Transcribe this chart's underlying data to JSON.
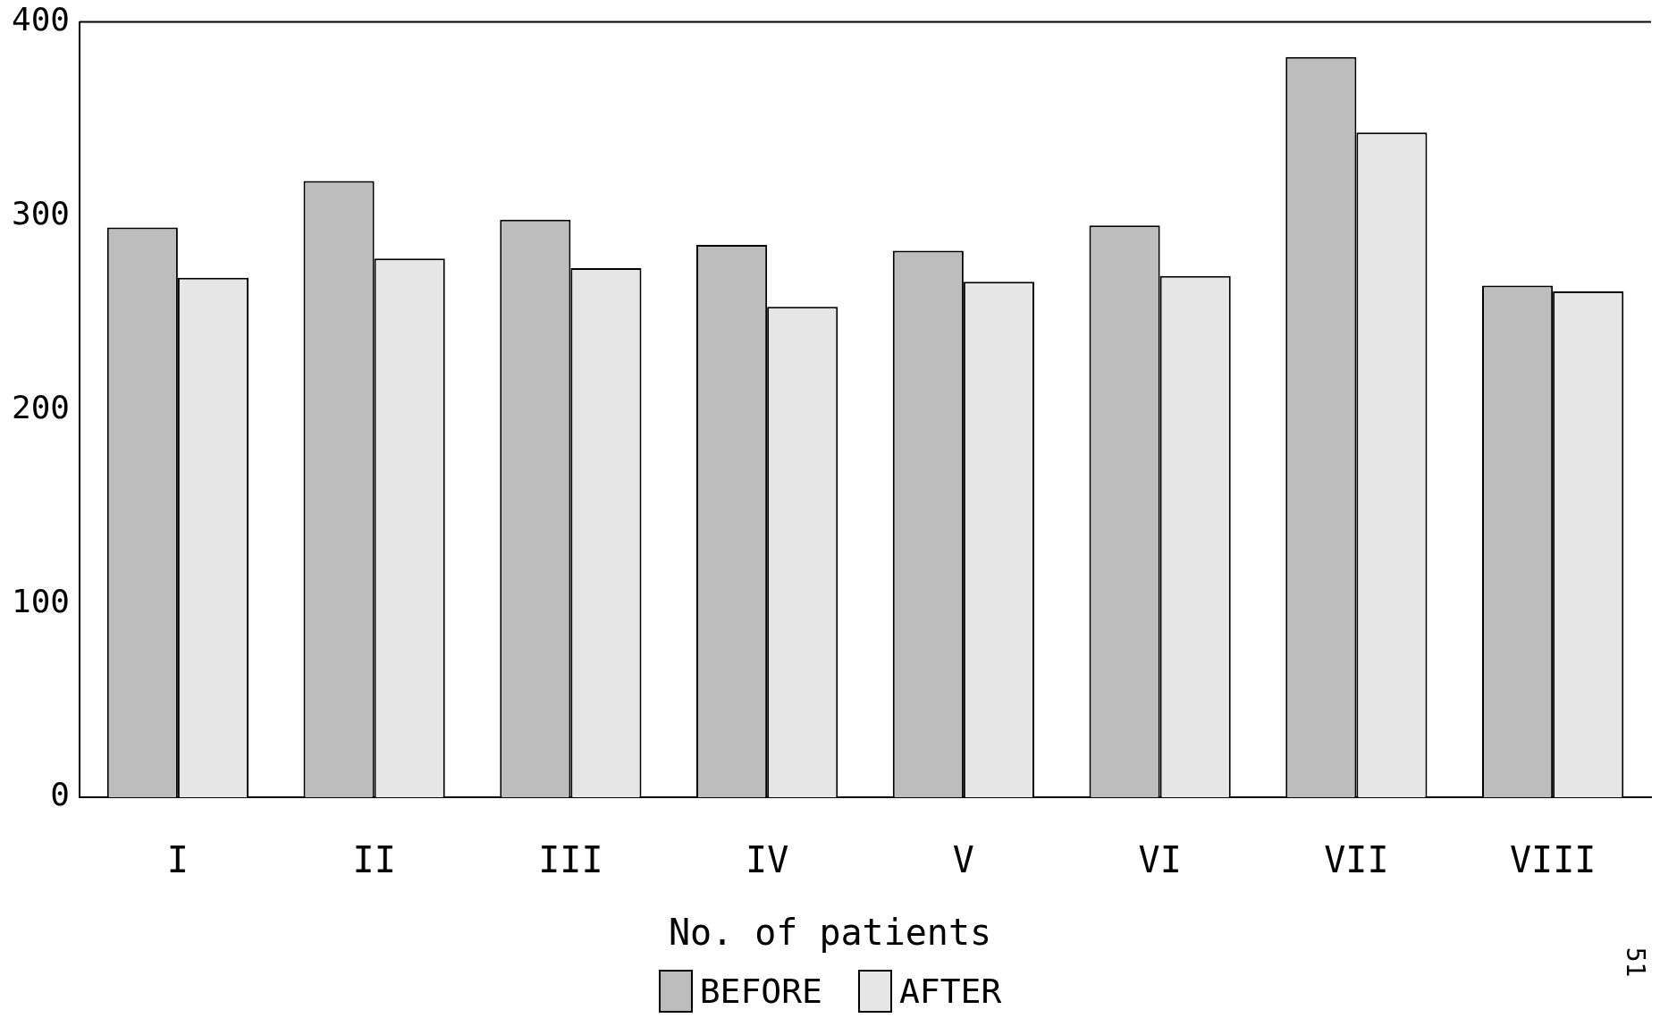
{
  "chart_data": {
    "type": "bar",
    "xlabel": "No. of patients",
    "categories": [
      "I",
      "II",
      "III",
      "IV",
      "V",
      "VI",
      "VII",
      "VIII"
    ],
    "series": [
      {
        "name": "BEFORE",
        "color": "#bdbdbd",
        "values": [
          294,
          318,
          298,
          285,
          282,
          295,
          382,
          264
        ]
      },
      {
        "name": "AFTER",
        "color": "#e6e6e6",
        "values": [
          268,
          278,
          273,
          253,
          266,
          269,
          343,
          261
        ]
      }
    ],
    "ylim": [
      0,
      400
    ],
    "yticks": [
      0,
      100,
      200,
      300,
      400
    ],
    "grid": false,
    "legend": "bottom",
    "annotations": [
      "51"
    ]
  }
}
